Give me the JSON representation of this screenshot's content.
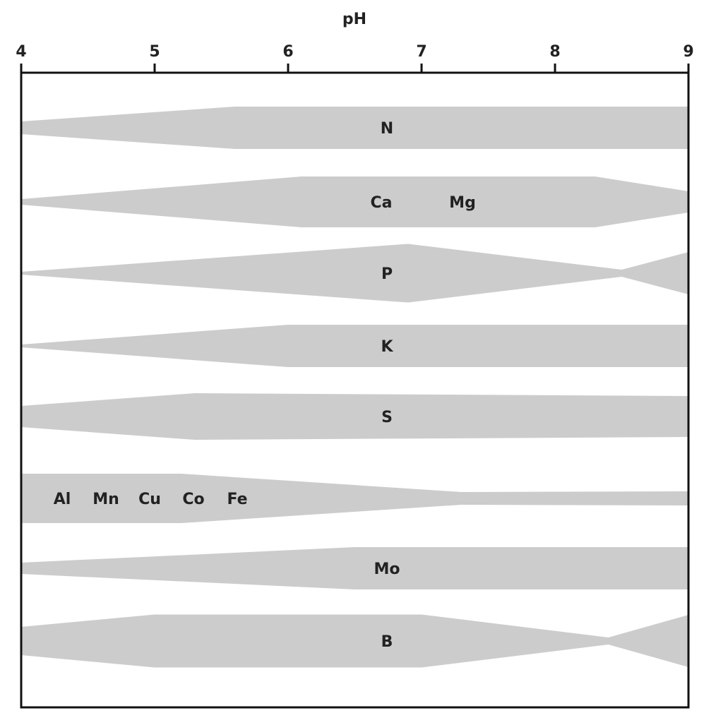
{
  "chart_data": {
    "type": "band",
    "x_label": "pH",
    "xlim": [
      4,
      9
    ],
    "xticks": [
      4,
      5,
      6,
      7,
      8,
      9
    ],
    "color": "#cccccc",
    "series": [
      {
        "labels": [
          "N"
        ],
        "x": [
          4,
          5.6,
          9
        ],
        "values": [
          18,
          60,
          60
        ]
      },
      {
        "labels": [
          "Ca",
          "Mg"
        ],
        "x": [
          4,
          6.1,
          8.3,
          9
        ],
        "values": [
          8,
          72,
          72,
          30
        ]
      },
      {
        "labels": [
          "P"
        ],
        "x": [
          4,
          6.9,
          8.5,
          9
        ],
        "values": [
          4,
          83,
          10,
          60
        ]
      },
      {
        "labels": [
          "K"
        ],
        "x": [
          4,
          6,
          9
        ],
        "values": [
          4,
          60,
          60
        ]
      },
      {
        "labels": [
          "S"
        ],
        "x": [
          4,
          5.3,
          9
        ],
        "values": [
          30,
          66,
          58
        ]
      },
      {
        "labels": [
          "Al",
          "Mn",
          "Cu",
          "Co",
          "Fe"
        ],
        "x": [
          4,
          5.2,
          7.3,
          9
        ],
        "values": [
          70,
          70,
          18,
          20
        ]
      },
      {
        "labels": [
          "Mo"
        ],
        "x": [
          4,
          6.5,
          9
        ],
        "values": [
          16,
          60,
          60
        ]
      },
      {
        "labels": [
          "B"
        ],
        "x": [
          4,
          5,
          7,
          8.4,
          9
        ],
        "values": [
          40,
          75,
          75,
          10,
          74
        ]
      }
    ]
  }
}
